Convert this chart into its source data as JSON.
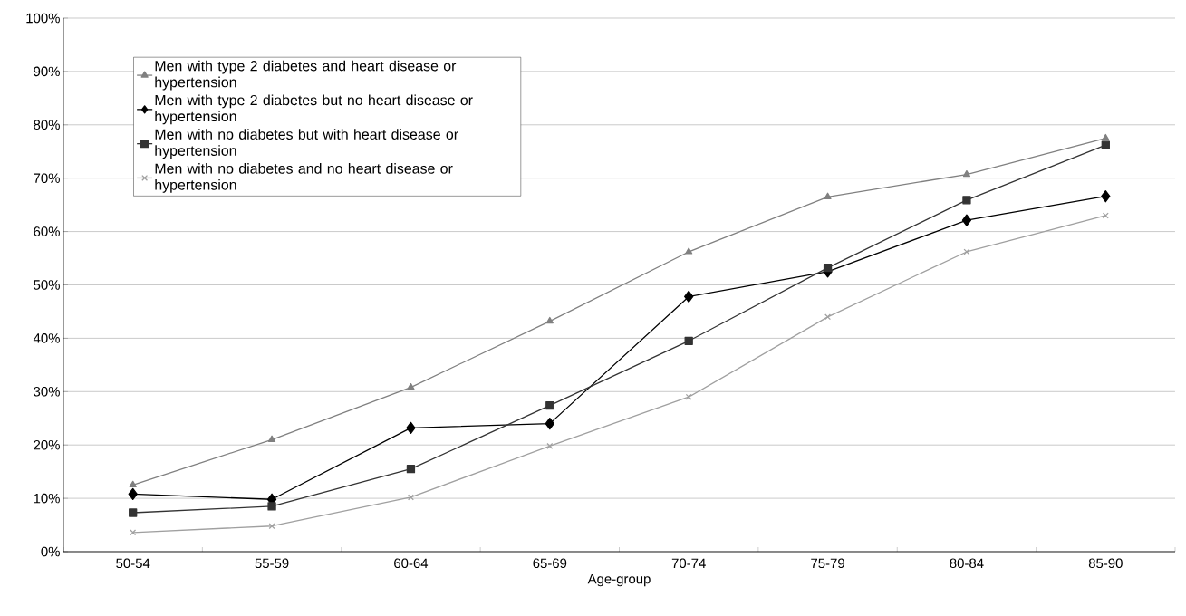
{
  "chart_data": {
    "type": "line",
    "xlabel": "Age-group",
    "categories": [
      "50-54",
      "55-59",
      "60-64",
      "65-69",
      "70-74",
      "75-79",
      "80-84",
      "85-90"
    ],
    "series": [
      {
        "name": "Men with type 2 diabetes and heart disease or hypertension",
        "color": "#808080",
        "marker": "triangle",
        "values": [
          12.5,
          21,
          30.8,
          43.2,
          56.2,
          66.5,
          70.7,
          77.5
        ]
      },
      {
        "name": "Men with type 2 diabetes but no heart disease or hypertension",
        "color": "#000000",
        "marker": "diamond",
        "values": [
          10.8,
          9.8,
          23.2,
          24,
          47.8,
          52.5,
          62.1,
          66.6
        ]
      },
      {
        "name": "Men with no diabetes but with heart disease or hypertension",
        "color": "#333333",
        "marker": "square",
        "values": [
          7.3,
          8.5,
          15.5,
          27.4,
          39.5,
          53.2,
          65.9,
          76.2
        ]
      },
      {
        "name": "Men with no diabetes and no heart disease or hypertension",
        "color": "#a0a0a0",
        "marker": "cross",
        "values": [
          3.6,
          4.8,
          10.2,
          19.8,
          29,
          44,
          56.2,
          63
        ]
      }
    ],
    "ylim": [
      0,
      100
    ],
    "yticks": [
      {
        "value": 0,
        "label": "0%"
      },
      {
        "value": 10,
        "label": "10%"
      },
      {
        "value": 20,
        "label": "20%"
      },
      {
        "value": 30,
        "label": "30%"
      },
      {
        "value": 40,
        "label": "40%"
      },
      {
        "value": 50,
        "label": "50%"
      },
      {
        "value": 60,
        "label": "60%"
      },
      {
        "value": 70,
        "label": "70%"
      },
      {
        "value": 80,
        "label": "80%"
      },
      {
        "value": 90,
        "label": "90%"
      },
      {
        "value": 100,
        "label": "100%"
      }
    ],
    "grid": "y",
    "legend": "top left",
    "line_style": "solid"
  }
}
